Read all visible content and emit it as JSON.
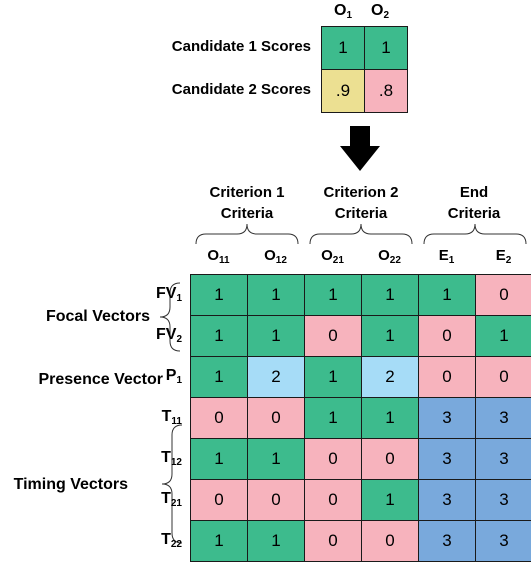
{
  "colors": {
    "green": "#3dbb8d",
    "pink": "#f7b3bd",
    "yellow": "#ece092",
    "lightblue": "#a6dcf7",
    "blue": "#79a9dc"
  },
  "top_table": {
    "columns": [
      {
        "base": "O",
        "sub": "1"
      },
      {
        "base": "O",
        "sub": "2"
      }
    ],
    "rows": [
      {
        "label": "Candidate 1 Scores",
        "cells": [
          {
            "v": "1",
            "c": "green"
          },
          {
            "v": "1",
            "c": "green"
          }
        ]
      },
      {
        "label": "Candidate 2 Scores",
        "cells": [
          {
            "v": ".9",
            "c": "yellow"
          },
          {
            "v": ".8",
            "c": "pink"
          }
        ]
      }
    ]
  },
  "arrow_icon": "down-arrow-icon",
  "groups": [
    {
      "line1": "Criterion 1",
      "line2": "Criteria"
    },
    {
      "line1": "Criterion 2",
      "line2": "Criteria"
    },
    {
      "line1": "End",
      "line2": "Criteria"
    }
  ],
  "columns": [
    {
      "base": "O",
      "sub": "11"
    },
    {
      "base": "O",
      "sub": "12"
    },
    {
      "base": "O",
      "sub": "21"
    },
    {
      "base": "O",
      "sub": "22"
    },
    {
      "base": "E",
      "sub": "1"
    },
    {
      "base": "E",
      "sub": "2"
    }
  ],
  "group_labels": [
    {
      "text": "Focal Vectors"
    },
    {
      "text": "Presence Vector"
    },
    {
      "text": "Timing Vectors"
    }
  ],
  "rows": [
    {
      "base": "FV",
      "sub": "1",
      "cells": [
        [
          "1",
          "green"
        ],
        [
          "1",
          "green"
        ],
        [
          "1",
          "green"
        ],
        [
          "1",
          "green"
        ],
        [
          "1",
          "green"
        ],
        [
          "0",
          "pink"
        ]
      ]
    },
    {
      "base": "FV",
      "sub": "2",
      "cells": [
        [
          "1",
          "green"
        ],
        [
          "1",
          "green"
        ],
        [
          "0",
          "pink"
        ],
        [
          "1",
          "green"
        ],
        [
          "0",
          "pink"
        ],
        [
          "1",
          "green"
        ]
      ]
    },
    {
      "base": "P",
      "sub": "1",
      "cells": [
        [
          "1",
          "green"
        ],
        [
          "2",
          "lightblue"
        ],
        [
          "1",
          "green"
        ],
        [
          "2",
          "lightblue"
        ],
        [
          "0",
          "pink"
        ],
        [
          "0",
          "pink"
        ]
      ]
    },
    {
      "base": "T",
      "sub": "11",
      "cells": [
        [
          "0",
          "pink"
        ],
        [
          "0",
          "pink"
        ],
        [
          "1",
          "green"
        ],
        [
          "1",
          "green"
        ],
        [
          "3",
          "blue"
        ],
        [
          "3",
          "blue"
        ]
      ]
    },
    {
      "base": "T",
      "sub": "12",
      "cells": [
        [
          "1",
          "green"
        ],
        [
          "1",
          "green"
        ],
        [
          "0",
          "pink"
        ],
        [
          "0",
          "pink"
        ],
        [
          "3",
          "blue"
        ],
        [
          "3",
          "blue"
        ]
      ]
    },
    {
      "base": "T",
      "sub": "21",
      "cells": [
        [
          "0",
          "pink"
        ],
        [
          "0",
          "pink"
        ],
        [
          "0",
          "pink"
        ],
        [
          "1",
          "green"
        ],
        [
          "3",
          "blue"
        ],
        [
          "3",
          "blue"
        ]
      ]
    },
    {
      "base": "T",
      "sub": "22",
      "cells": [
        [
          "1",
          "green"
        ],
        [
          "1",
          "green"
        ],
        [
          "0",
          "pink"
        ],
        [
          "0",
          "pink"
        ],
        [
          "3",
          "blue"
        ],
        [
          "3",
          "blue"
        ]
      ]
    }
  ]
}
